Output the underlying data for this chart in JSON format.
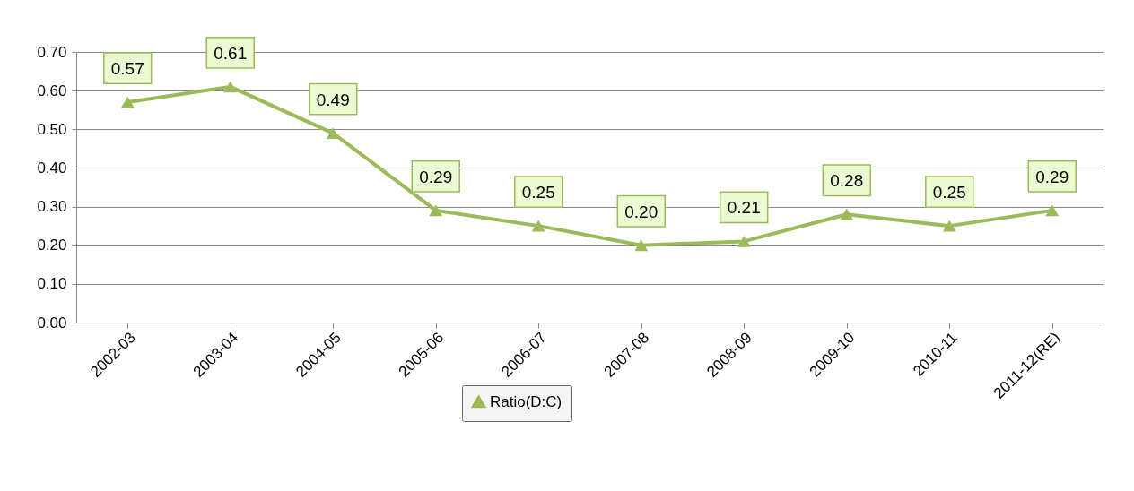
{
  "chart_data": {
    "type": "line",
    "categories": [
      "2002-03",
      "2003-04",
      "2004-05",
      "2005-06",
      "2006-07",
      "2007-08",
      "2008-09",
      "2009-10",
      "2010-11",
      "2011-12(RE)"
    ],
    "series": [
      {
        "name": "Ratio(D:C)",
        "color": "#9bbb59",
        "values": [
          0.57,
          0.61,
          0.49,
          0.29,
          0.25,
          0.2,
          0.21,
          0.28,
          0.25,
          0.29
        ],
        "value_labels": [
          "0.57",
          "0.61",
          "0.49",
          "0.29",
          "0.25",
          "0.20",
          "0.21",
          "0.28",
          "0.25",
          "0.29"
        ]
      }
    ],
    "ylim": [
      0,
      0.7
    ],
    "yticks": [
      {
        "value": 0,
        "label": "0.00"
      },
      {
        "value": 0.1,
        "label": "0.10"
      },
      {
        "value": 0.2,
        "label": "0.20"
      },
      {
        "value": 0.3,
        "label": "0.30"
      },
      {
        "value": 0.4,
        "label": "0.40"
      },
      {
        "value": 0.5,
        "label": "0.50"
      },
      {
        "value": 0.6,
        "label": "0.60"
      },
      {
        "value": 0.7,
        "label": "0.70"
      }
    ],
    "grid": "y",
    "legend": "bottom",
    "marker": "triangle",
    "line_style": "solid"
  }
}
